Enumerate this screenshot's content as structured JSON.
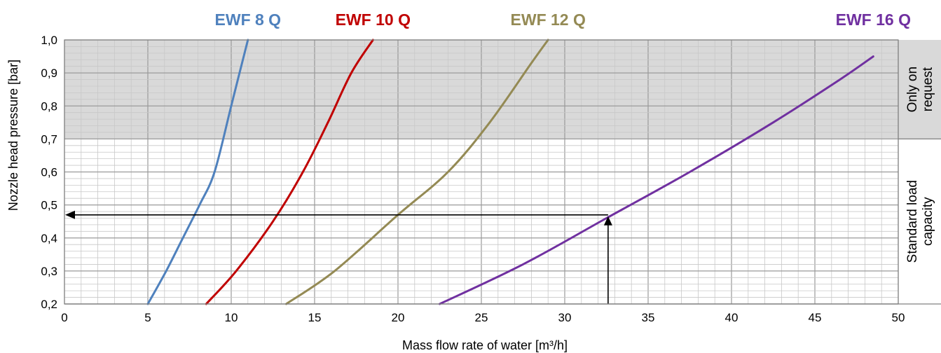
{
  "chart_data": {
    "type": "line",
    "xlabel": "Mass flow rate of water [m³/h]",
    "ylabel": "Nozzle head pressure [bar]",
    "xlim": [
      0,
      50
    ],
    "ylim": [
      0.2,
      1.0
    ],
    "x_ticks": [
      "0",
      "5",
      "10",
      "15",
      "20",
      "25",
      "30",
      "35",
      "40",
      "45",
      "50"
    ],
    "y_ticks": [
      "0,2",
      "0,3",
      "0,4",
      "0,5",
      "0,6",
      "0,7",
      "0,8",
      "0,9",
      "1,0"
    ],
    "grid": true,
    "legend": "top (labels above curves)",
    "series": [
      {
        "name": "EWF 8 Q",
        "color": "#4f81bd",
        "x": [
          5.0,
          6.1,
          7.1,
          8.1,
          9.0,
          10.0,
          11.0
        ],
        "y": [
          0.2,
          0.3,
          0.4,
          0.5,
          0.6,
          0.8,
          1.0
        ]
      },
      {
        "name": "EWF 10 Q",
        "color": "#c00000",
        "x": [
          8.5,
          10.3,
          12.5,
          14.3,
          15.8,
          17.2,
          18.5
        ],
        "y": [
          0.2,
          0.3,
          0.45,
          0.6,
          0.75,
          0.9,
          1.0
        ]
      },
      {
        "name": "EWF 12 Q",
        "color": "#948a54",
        "x": [
          13.3,
          16.2,
          20.0,
          23.0,
          25.5,
          28.0,
          29.0
        ],
        "y": [
          0.2,
          0.3,
          0.47,
          0.6,
          0.75,
          0.93,
          1.0
        ]
      },
      {
        "name": "EWF 16 Q",
        "color": "#7030a0",
        "x": [
          22.5,
          27.5,
          32.5,
          37.5,
          42.5,
          46.5,
          48.5
        ],
        "y": [
          0.2,
          0.32,
          0.46,
          0.6,
          0.75,
          0.88,
          0.95
        ]
      }
    ],
    "example_reading": {
      "x": 32.6,
      "y": 0.47
    },
    "regions": [
      {
        "label": "Only on request",
        "y_range": [
          0.7,
          1.0
        ],
        "color": "#d9d9d9"
      },
      {
        "label": "Standard load capacity",
        "y_range": [
          0.2,
          0.7
        ],
        "color": "#ffffff"
      }
    ]
  }
}
